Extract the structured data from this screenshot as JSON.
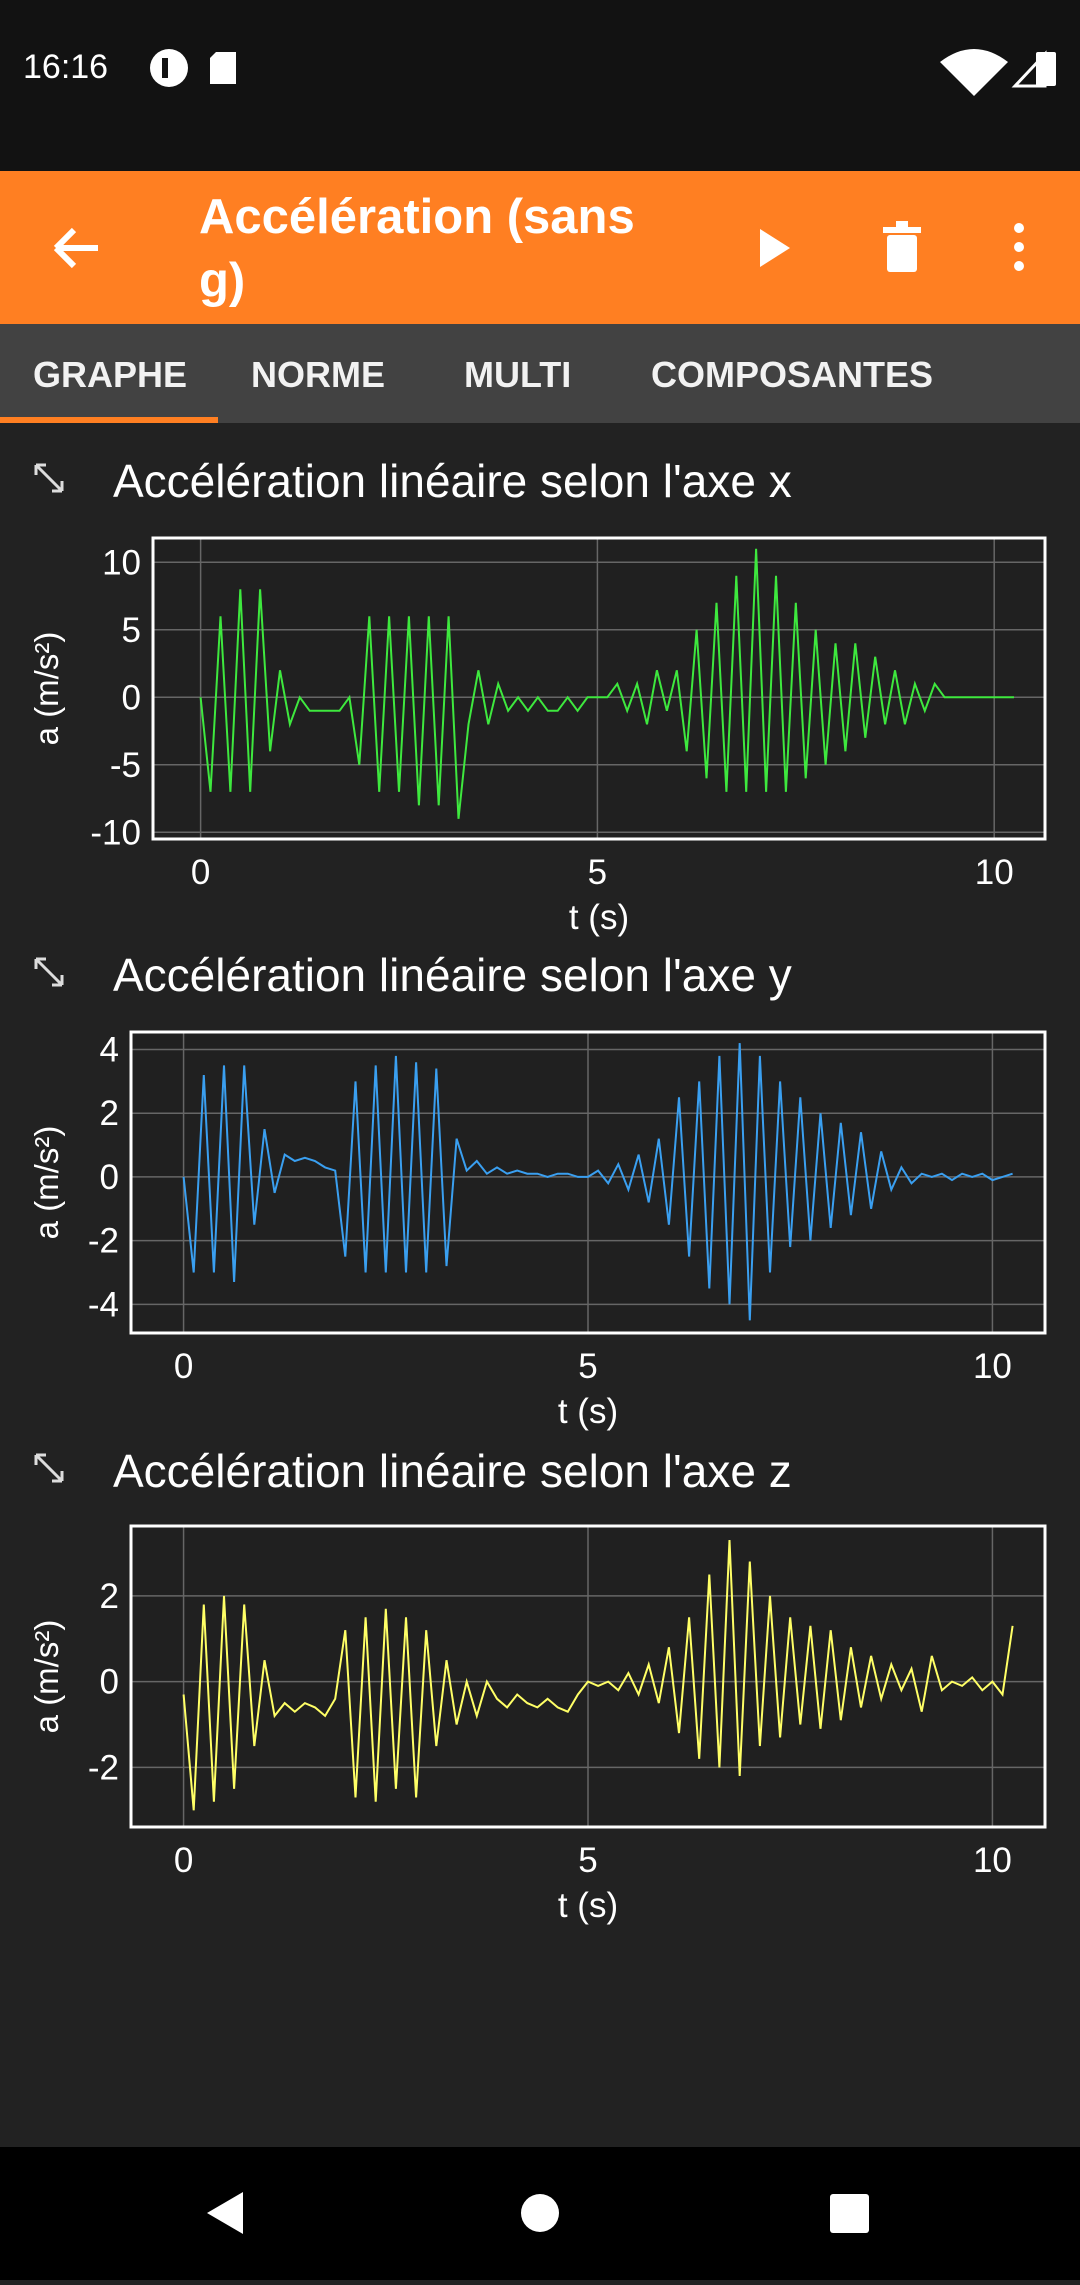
{
  "status_bar": {
    "time": "16:16"
  },
  "app_bar": {
    "title": "Accélération (sans g)"
  },
  "tabs": [
    "GRAPHE",
    "NORME",
    "MULTI",
    "COMPOSANTES"
  ],
  "chart_data": [
    {
      "type": "line",
      "title": "Accélération linéaire selon l'axe x",
      "x_label": "t (s)",
      "y_label": "a (m/s²)",
      "x": [
        0,
        0.125,
        0.25,
        0.375,
        0.5,
        0.625,
        0.75,
        0.875,
        1,
        1.125,
        1.25,
        1.375,
        1.5,
        1.625,
        1.75,
        1.875,
        2,
        2.125,
        2.25,
        2.375,
        2.5,
        2.625,
        2.75,
        2.875,
        3,
        3.125,
        3.25,
        3.375,
        3.5,
        3.625,
        3.75,
        3.875,
        4,
        4.125,
        4.25,
        4.375,
        4.5,
        4.625,
        4.75,
        4.875,
        5,
        5.125,
        5.25,
        5.375,
        5.5,
        5.625,
        5.75,
        5.875,
        6,
        6.125,
        6.25,
        6.375,
        6.5,
        6.625,
        6.75,
        6.875,
        7,
        7.125,
        7.25,
        7.375,
        7.5,
        7.625,
        7.75,
        7.875,
        8,
        8.125,
        8.25,
        8.375,
        8.5,
        8.625,
        8.75,
        8.875,
        9,
        9.125,
        9.25,
        9.375,
        9.5,
        9.625,
        9.75,
        9.875,
        10,
        10.125,
        10.25
      ],
      "series": [
        {
          "color": "#3ee83e",
          "values": [
            0,
            -7,
            6,
            -7,
            8,
            -7,
            8,
            -4,
            2,
            -2,
            0,
            -1,
            -1,
            -1,
            -1,
            0,
            -5,
            6,
            -7,
            6,
            -7,
            6,
            -8,
            6,
            -8,
            6,
            -9,
            -2,
            2,
            -2,
            1,
            -1,
            0,
            -1,
            0,
            -1,
            -1,
            0,
            -1,
            0,
            0,
            0,
            1,
            -1,
            1,
            -2,
            2,
            -1,
            2,
            -4,
            5,
            -6,
            7,
            -7,
            9,
            -7,
            11,
            -7,
            9,
            -7,
            7,
            -6,
            5,
            -5,
            4,
            -4,
            4,
            -3,
            3,
            -2,
            2,
            -2,
            1,
            -1,
            1,
            0,
            0,
            0,
            0,
            0,
            0,
            0,
            0
          ]
        }
      ],
      "xlim": [
        -0.6,
        10.64
      ],
      "ylim": [
        -10.5,
        11.8
      ],
      "xticks": [
        0,
        5,
        10
      ],
      "yticks": [
        -10,
        -5,
        0,
        5,
        10
      ],
      "grid": true
    },
    {
      "type": "line",
      "title": "Accélération linéaire selon l'axe y",
      "x_label": "t (s)",
      "y_label": "a (m/s²)",
      "x": [
        0,
        0.125,
        0.25,
        0.375,
        0.5,
        0.625,
        0.75,
        0.875,
        1,
        1.125,
        1.25,
        1.375,
        1.5,
        1.625,
        1.75,
        1.875,
        2,
        2.125,
        2.25,
        2.375,
        2.5,
        2.625,
        2.75,
        2.875,
        3,
        3.125,
        3.25,
        3.375,
        3.5,
        3.625,
        3.75,
        3.875,
        4,
        4.125,
        4.25,
        4.375,
        4.5,
        4.625,
        4.75,
        4.875,
        5,
        5.125,
        5.25,
        5.375,
        5.5,
        5.625,
        5.75,
        5.875,
        6,
        6.125,
        6.25,
        6.375,
        6.5,
        6.625,
        6.75,
        6.875,
        7,
        7.125,
        7.25,
        7.375,
        7.5,
        7.625,
        7.75,
        7.875,
        8,
        8.125,
        8.25,
        8.375,
        8.5,
        8.625,
        8.75,
        8.875,
        9,
        9.125,
        9.25,
        9.375,
        9.5,
        9.625,
        9.75,
        9.875,
        10,
        10.125,
        10.25
      ],
      "series": [
        {
          "color": "#3a9ff0",
          "values": [
            0,
            -3,
            3.2,
            -3,
            3.5,
            -3.3,
            3.5,
            -1.5,
            1.5,
            -0.5,
            0.7,
            0.5,
            0.6,
            0.5,
            0.3,
            0.2,
            -2.5,
            3,
            -3,
            3.5,
            -3,
            3.8,
            -3,
            3.6,
            -3,
            3.4,
            -2.8,
            1.2,
            0.2,
            0.5,
            0.1,
            0.3,
            0.1,
            0.2,
            0.1,
            0.1,
            0,
            0.1,
            0.1,
            0,
            0,
            0.2,
            -0.2,
            0.4,
            -0.4,
            0.7,
            -0.8,
            1.2,
            -1.5,
            2.5,
            -2.5,
            3,
            -3.5,
            3.8,
            -4,
            4.2,
            -4.5,
            3.8,
            -3,
            3,
            -2.2,
            2.5,
            -2,
            2,
            -1.6,
            1.7,
            -1.2,
            1.4,
            -1,
            0.8,
            -0.4,
            0.3,
            -0.2,
            0.1,
            0,
            0.1,
            -0.1,
            0.1,
            0,
            0.1,
            -0.1,
            0,
            0.1
          ]
        }
      ],
      "xlim": [
        -0.65,
        10.65
      ],
      "ylim": [
        -4.9,
        4.55
      ],
      "xticks": [
        0,
        5,
        10
      ],
      "yticks": [
        -4,
        -2,
        0,
        2,
        4
      ],
      "grid": true
    },
    {
      "type": "line",
      "title": "Accélération linéaire selon l'axe z",
      "x_label": "t (s)",
      "y_label": "a (m/s²)",
      "x": [
        0,
        0.125,
        0.25,
        0.375,
        0.5,
        0.625,
        0.75,
        0.875,
        1,
        1.125,
        1.25,
        1.375,
        1.5,
        1.625,
        1.75,
        1.875,
        2,
        2.125,
        2.25,
        2.375,
        2.5,
        2.625,
        2.75,
        2.875,
        3,
        3.125,
        3.25,
        3.375,
        3.5,
        3.625,
        3.75,
        3.875,
        4,
        4.125,
        4.25,
        4.375,
        4.5,
        4.625,
        4.75,
        4.875,
        5,
        5.125,
        5.25,
        5.375,
        5.5,
        5.625,
        5.75,
        5.875,
        6,
        6.125,
        6.25,
        6.375,
        6.5,
        6.625,
        6.75,
        6.875,
        7,
        7.125,
        7.25,
        7.375,
        7.5,
        7.625,
        7.75,
        7.875,
        8,
        8.125,
        8.25,
        8.375,
        8.5,
        8.625,
        8.75,
        8.875,
        9,
        9.125,
        9.25,
        9.375,
        9.5,
        9.625,
        9.75,
        9.875,
        10,
        10.125,
        10.25
      ],
      "series": [
        {
          "color": "#ffff66",
          "values": [
            -0.3,
            -3,
            1.8,
            -2.8,
            2,
            -2.5,
            1.8,
            -1.5,
            0.5,
            -0.8,
            -0.5,
            -0.7,
            -0.5,
            -0.6,
            -0.8,
            -0.4,
            1.2,
            -2.7,
            1.5,
            -2.8,
            1.7,
            -2.5,
            1.5,
            -2.7,
            1.2,
            -1.5,
            0.5,
            -1,
            0,
            -0.8,
            0,
            -0.4,
            -0.6,
            -0.3,
            -0.5,
            -0.6,
            -0.4,
            -0.6,
            -0.7,
            -0.3,
            0,
            -0.1,
            0,
            -0.2,
            0.2,
            -0.3,
            0.4,
            -0.5,
            0.8,
            -1.2,
            1.5,
            -1.8,
            2.5,
            -2,
            3.3,
            -2.2,
            2.8,
            -1.5,
            2,
            -1.3,
            1.5,
            -1,
            1.3,
            -1.1,
            1.2,
            -0.9,
            0.8,
            -0.6,
            0.6,
            -0.4,
            0.4,
            -0.2,
            0.3,
            -0.7,
            0.6,
            -0.2,
            0,
            -0.1,
            0.1,
            -0.2,
            0,
            -0.3,
            1.3
          ]
        }
      ],
      "xlim": [
        -0.65,
        10.65
      ],
      "ylim": [
        -3.39,
        3.63
      ],
      "xticks": [
        0,
        5,
        10
      ],
      "yticks": [
        -2,
        0,
        2
      ],
      "grid": true
    }
  ]
}
